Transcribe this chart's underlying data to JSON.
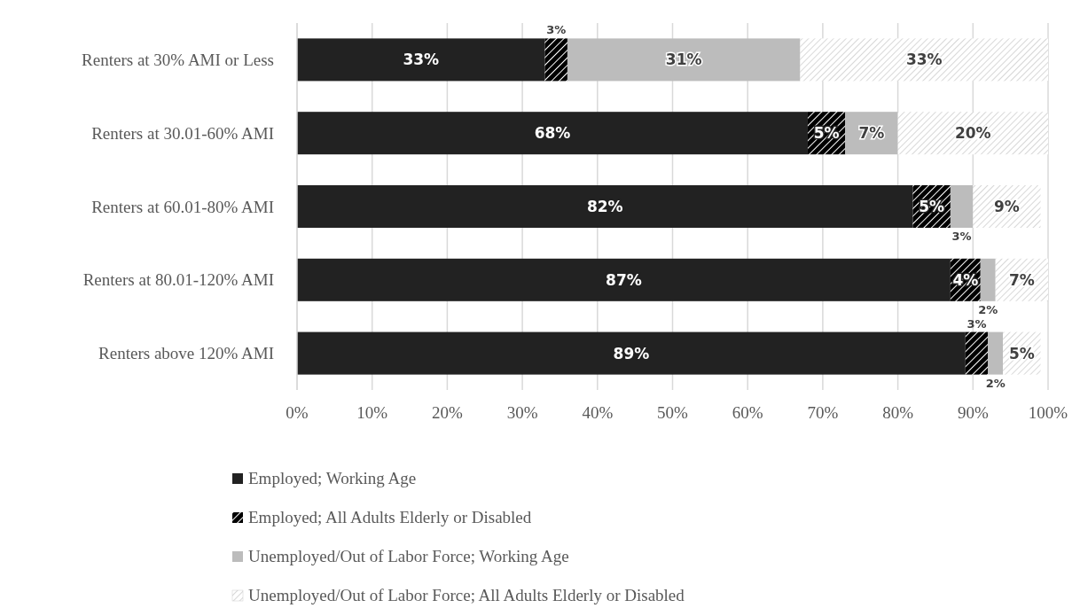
{
  "chart_data": {
    "type": "bar",
    "orientation": "horizontal",
    "stacked": true,
    "categories": [
      "Renters at 30% AMI or Less",
      "Renters at 30.01-60% AMI",
      "Renters at 60.01-80% AMI",
      "Renters at 80.01-120% AMI",
      "Renters above 120% AMI"
    ],
    "series": [
      {
        "name": "Employed; Working Age",
        "color": "#222222",
        "values": [
          33,
          68,
          82,
          87,
          89
        ],
        "value_labels": [
          "33%",
          "68%",
          "82%",
          "87%",
          "89%"
        ]
      },
      {
        "name": "Employed; All Adults Elderly or Disabled",
        "color": "#000000",
        "values": [
          3,
          5,
          5,
          4,
          3
        ],
        "value_labels": [
          "3%",
          "5%",
          "5%",
          "4%",
          "3%"
        ]
      },
      {
        "name": "Unemployed/Out of Labor Force; Working Age",
        "color": "#bcbcbc",
        "values": [
          31,
          7,
          3,
          2,
          2
        ],
        "value_labels": [
          "31%",
          "7%",
          "3%",
          "2%",
          "2%"
        ]
      },
      {
        "name": "Unemployed/Out of Labor Force; All Adults Elderly or Disabled",
        "color": "#ffffff",
        "values": [
          33,
          20,
          9,
          7,
          5
        ],
        "value_labels": [
          "33%",
          "20%",
          "9%",
          "7%",
          "5%"
        ]
      }
    ],
    "xlim": [
      0,
      100
    ],
    "xticks": [
      {
        "value": 0,
        "label": "0%"
      },
      {
        "value": 10,
        "label": "10%"
      },
      {
        "value": 20,
        "label": "20%"
      },
      {
        "value": 30,
        "label": "30%"
      },
      {
        "value": 40,
        "label": "40%"
      },
      {
        "value": 50,
        "label": "50%"
      },
      {
        "value": 60,
        "label": "60%"
      },
      {
        "value": 70,
        "label": "70%"
      },
      {
        "value": 80,
        "label": "80%"
      },
      {
        "value": 90,
        "label": "90%"
      },
      {
        "value": 100,
        "label": "100%"
      }
    ],
    "grid": "x",
    "legend": "bottom"
  }
}
